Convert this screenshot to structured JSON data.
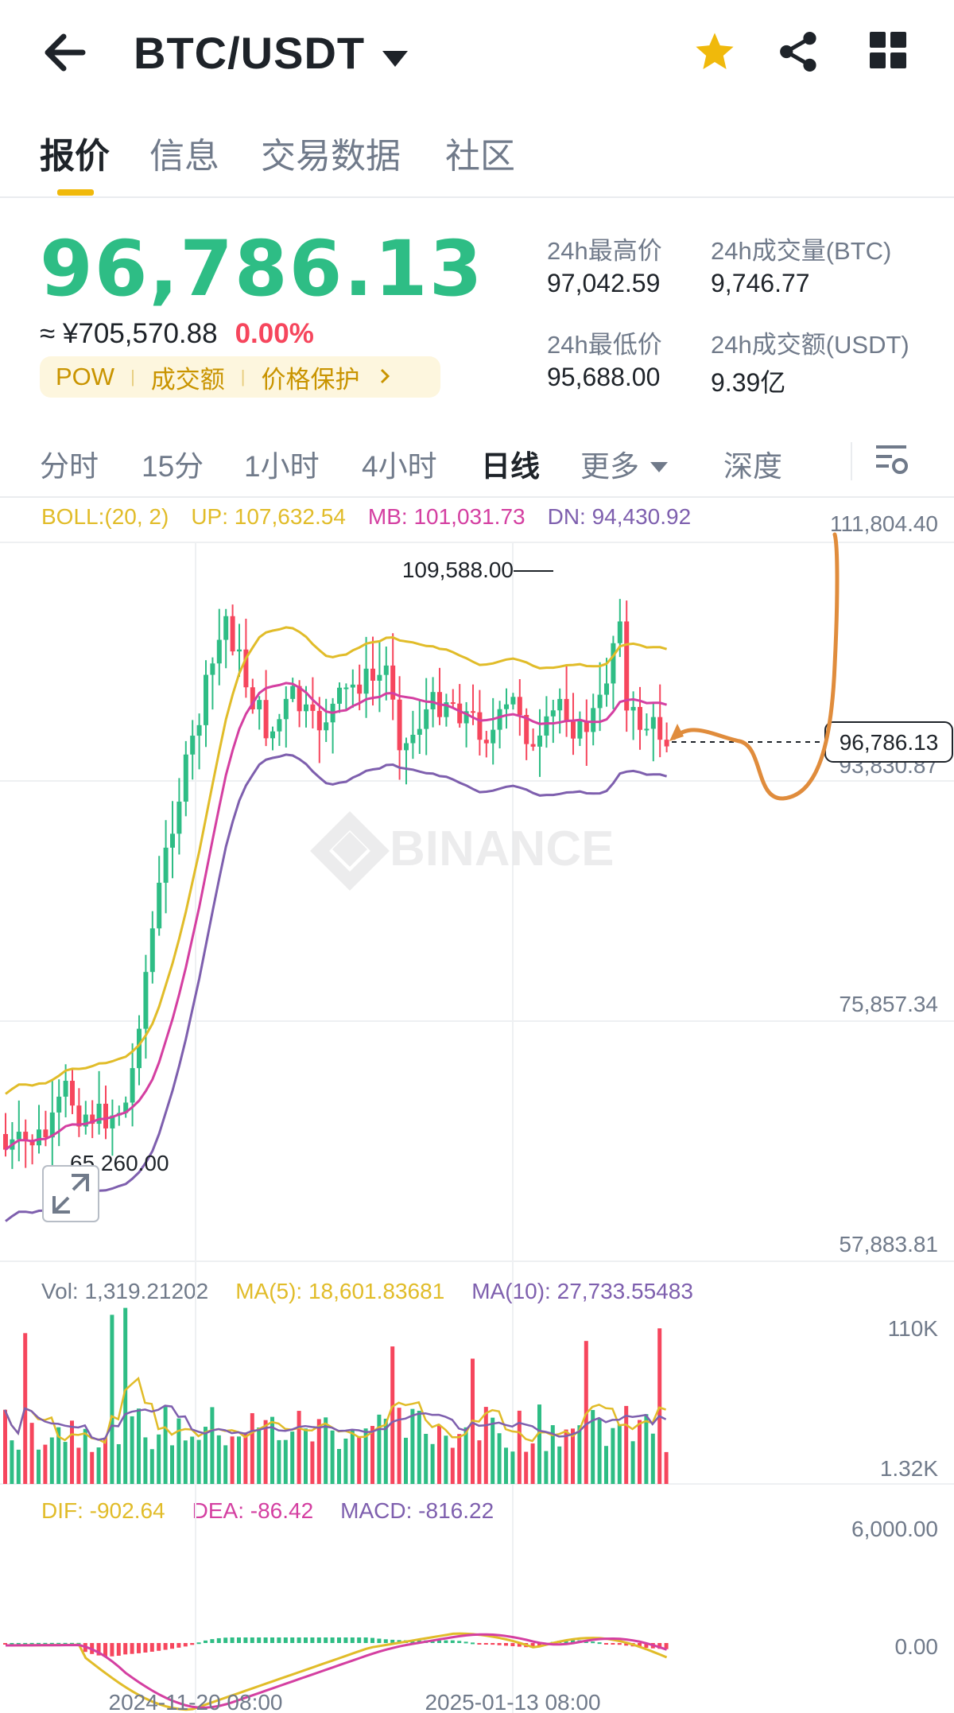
{
  "header": {
    "pair": "BTC/USDT"
  },
  "tabs": [
    {
      "label": "报价",
      "active": true
    },
    {
      "label": "信息",
      "active": false
    },
    {
      "label": "交易数据",
      "active": false
    },
    {
      "label": "社区",
      "active": false
    }
  ],
  "ticker": {
    "last_price": "96,786.13",
    "cny_price": "≈ ¥705,570.88",
    "change_pct": "0.00%",
    "tags": [
      "POW",
      "成交额",
      "价格保护"
    ],
    "high_label": "24h最高价",
    "high": "97,042.59",
    "low_label": "24h最低价",
    "low": "95,688.00",
    "vol_btc_label": "24h成交量(BTC)",
    "vol_btc": "9,746.77",
    "vol_usdt_label": "24h成交额(USDT)",
    "vol_usdt": "9.39亿"
  },
  "intervals": [
    {
      "label": "分时",
      "active": false
    },
    {
      "label": "15分",
      "active": false
    },
    {
      "label": "1小时",
      "active": false
    },
    {
      "label": "4小时",
      "active": false
    },
    {
      "label": "日线",
      "active": true
    },
    {
      "label": "更多",
      "active": false
    },
    {
      "label": "深度",
      "active": false
    }
  ],
  "colors": {
    "up": "#2ebd85",
    "down": "#f6465d",
    "boll_up": "#e1bc29",
    "boll_mb": "#d43fa1",
    "boll_dn": "#7e5fae",
    "annotation": "#e08c3c"
  },
  "indicators": {
    "boll": "BOLL:(20, 2)",
    "boll_up": "UP: 107,632.54",
    "boll_mb": "MB: 101,031.73",
    "boll_dn": "DN: 94,430.92",
    "vol": "Vol: 1,319.21202",
    "vol_ma5": "MA(5): 18,601.83681",
    "vol_ma10": "MA(10): 27,733.55483",
    "dif": "DIF: -902.64",
    "dea": "DEA: -86.42",
    "macd": "MACD: -816.22"
  },
  "watermark": "BINANCE",
  "chart_data": {
    "type": "candlestick",
    "price_axis": [
      "111,804.40",
      "93,830.87",
      "75,857.34",
      "57,883.81"
    ],
    "ylim": [
      57883.81,
      111804.4
    ],
    "high_marker": "109,588.00",
    "low_marker": "65,260.00",
    "current_price_label": "96,786.13",
    "volume_axis": [
      "110K",
      "1.32K"
    ],
    "macd_axis": [
      "6,000.00",
      "0.00"
    ],
    "date_labels": [
      "2024-11-20 08:00",
      "2025-01-13 08:00"
    ]
  }
}
